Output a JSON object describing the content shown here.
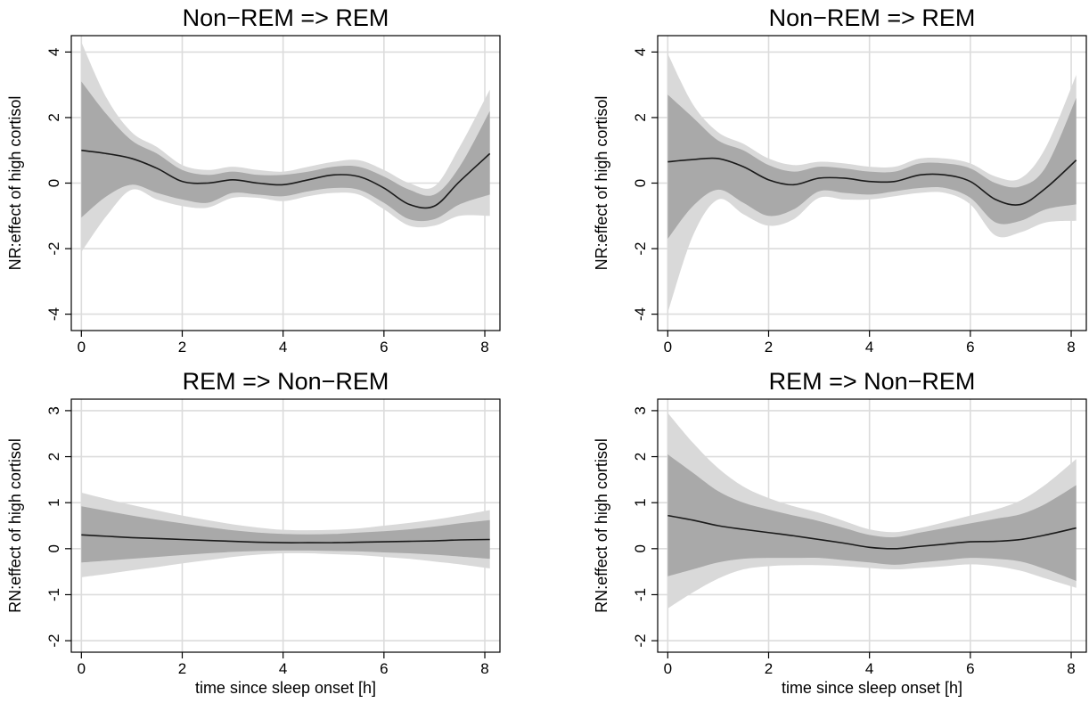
{
  "chart_data": [
    {
      "type": "line",
      "title": "Non−REM => REM",
      "xlabel": "",
      "ylabel": "NR:effect of high cortisol",
      "xlim": [
        -0.2,
        8.3
      ],
      "ylim": [
        -4.5,
        4.5
      ],
      "xticks": [
        0,
        2,
        4,
        6,
        8
      ],
      "yticks": [
        -4,
        -2,
        0,
        2,
        4
      ],
      "grid": true,
      "bands": [
        "95% interval (light grey)",
        "inner interval (dark grey)"
      ],
      "x": [
        0,
        0.5,
        1,
        1.5,
        2,
        2.5,
        3,
        3.5,
        4,
        4.5,
        5,
        5.5,
        6,
        6.5,
        7,
        7.5,
        8.1
      ],
      "estimate": [
        1.0,
        0.9,
        0.75,
        0.45,
        0.05,
        0.0,
        0.1,
        0.0,
        -0.05,
        0.1,
        0.25,
        0.2,
        -0.15,
        -0.65,
        -0.7,
        0.05,
        0.9
      ],
      "inner_lower": [
        -1.05,
        -0.4,
        -0.05,
        -0.3,
        -0.5,
        -0.6,
        -0.3,
        -0.35,
        -0.4,
        -0.25,
        -0.15,
        -0.2,
        -0.6,
        -1.1,
        -1.1,
        -0.65,
        -0.35
      ],
      "inner_upper": [
        3.1,
        2.1,
        1.3,
        0.9,
        0.4,
        0.25,
        0.35,
        0.25,
        0.25,
        0.35,
        0.5,
        0.5,
        0.2,
        -0.2,
        -0.35,
        0.5,
        2.2
      ],
      "outer_lower": [
        -2.1,
        -1.0,
        -0.2,
        -0.5,
        -0.7,
        -0.75,
        -0.45,
        -0.45,
        -0.55,
        -0.4,
        -0.3,
        -0.35,
        -0.8,
        -1.3,
        -1.3,
        -1.0,
        -1.0
      ],
      "outer_upper": [
        4.3,
        2.6,
        1.55,
        1.1,
        0.55,
        0.4,
        0.5,
        0.4,
        0.35,
        0.5,
        0.65,
        0.7,
        0.4,
        0.0,
        -0.1,
        1.1,
        2.85
      ]
    },
    {
      "type": "line",
      "title": "Non−REM => REM",
      "xlabel": "",
      "ylabel": "NR:effect of high cortisol",
      "xlim": [
        -0.2,
        8.3
      ],
      "ylim": [
        -4.5,
        4.5
      ],
      "xticks": [
        0,
        2,
        4,
        6,
        8
      ],
      "yticks": [
        -4,
        -2,
        0,
        2,
        4
      ],
      "grid": true,
      "x": [
        0,
        0.5,
        1,
        1.5,
        2,
        2.5,
        3,
        3.5,
        4,
        4.5,
        5,
        5.5,
        6,
        6.5,
        7,
        7.5,
        8.1
      ],
      "estimate": [
        0.65,
        0.72,
        0.75,
        0.5,
        0.1,
        -0.05,
        0.15,
        0.15,
        0.05,
        0.05,
        0.25,
        0.25,
        0.05,
        -0.5,
        -0.65,
        -0.15,
        0.7
      ],
      "inner_lower": [
        -1.7,
        -0.7,
        -0.2,
        -0.6,
        -1.0,
        -0.8,
        -0.25,
        -0.3,
        -0.35,
        -0.25,
        -0.15,
        -0.15,
        -0.45,
        -1.2,
        -1.15,
        -0.8,
        -0.65
      ],
      "inner_upper": [
        2.7,
        2.0,
        1.3,
        1.0,
        0.55,
        0.35,
        0.5,
        0.45,
        0.35,
        0.35,
        0.6,
        0.6,
        0.45,
        0.0,
        -0.1,
        0.5,
        2.6
      ],
      "outer_lower": [
        -3.95,
        -1.6,
        -0.5,
        -0.95,
        -1.3,
        -1.1,
        -0.45,
        -0.5,
        -0.5,
        -0.4,
        -0.3,
        -0.3,
        -0.65,
        -1.6,
        -1.5,
        -1.2,
        -1.15
      ],
      "outer_upper": [
        3.95,
        2.4,
        1.55,
        1.2,
        0.75,
        0.55,
        0.65,
        0.6,
        0.5,
        0.5,
        0.75,
        0.75,
        0.6,
        0.2,
        0.15,
        1.1,
        3.3
      ]
    },
    {
      "type": "line",
      "title": "REM => Non−REM",
      "xlabel": "time since sleep onset [h]",
      "ylabel": "RN:effect of high cortisol",
      "xlim": [
        -0.2,
        8.3
      ],
      "ylim": [
        -2.25,
        3.25
      ],
      "xticks": [
        0,
        2,
        4,
        6,
        8
      ],
      "yticks": [
        -2,
        -1,
        0,
        1,
        2,
        3
      ],
      "grid": true,
      "x": [
        0,
        0.5,
        1,
        1.5,
        2,
        2.5,
        3,
        3.5,
        4,
        4.5,
        5,
        5.5,
        6,
        6.5,
        7,
        7.5,
        8.1
      ],
      "estimate": [
        0.3,
        0.27,
        0.24,
        0.22,
        0.2,
        0.18,
        0.16,
        0.14,
        0.13,
        0.13,
        0.13,
        0.14,
        0.15,
        0.16,
        0.17,
        0.19,
        0.2
      ],
      "inner_lower": [
        -0.3,
        -0.26,
        -0.22,
        -0.18,
        -0.14,
        -0.1,
        -0.07,
        -0.05,
        -0.04,
        -0.04,
        -0.05,
        -0.06,
        -0.08,
        -0.1,
        -0.13,
        -0.17,
        -0.22
      ],
      "inner_upper": [
        0.92,
        0.82,
        0.72,
        0.63,
        0.55,
        0.47,
        0.4,
        0.35,
        0.32,
        0.31,
        0.32,
        0.35,
        0.38,
        0.42,
        0.48,
        0.55,
        0.62
      ],
      "outer_lower": [
        -0.62,
        -0.55,
        -0.47,
        -0.4,
        -0.32,
        -0.25,
        -0.18,
        -0.13,
        -0.1,
        -0.1,
        -0.12,
        -0.14,
        -0.18,
        -0.22,
        -0.28,
        -0.34,
        -0.43
      ],
      "outer_upper": [
        1.22,
        1.08,
        0.95,
        0.83,
        0.72,
        0.62,
        0.53,
        0.46,
        0.41,
        0.4,
        0.41,
        0.44,
        0.5,
        0.56,
        0.63,
        0.72,
        0.84
      ]
    },
    {
      "type": "line",
      "title": "REM => Non−REM",
      "xlabel": "time since sleep onset [h]",
      "ylabel": "RN:effect of high cortisol",
      "xlim": [
        -0.2,
        8.3
      ],
      "ylim": [
        -2.25,
        3.25
      ],
      "xticks": [
        0,
        2,
        4,
        6,
        8
      ],
      "yticks": [
        -2,
        -1,
        0,
        1,
        2,
        3
      ],
      "grid": true,
      "x": [
        0,
        0.5,
        1,
        1.5,
        2,
        2.5,
        3,
        3.5,
        4,
        4.5,
        5,
        5.5,
        6,
        6.5,
        7,
        7.5,
        8.1
      ],
      "estimate": [
        0.72,
        0.62,
        0.5,
        0.42,
        0.35,
        0.28,
        0.2,
        0.12,
        0.03,
        0.0,
        0.05,
        0.1,
        0.15,
        0.16,
        0.2,
        0.3,
        0.45
      ],
      "inner_lower": [
        -0.6,
        -0.45,
        -0.3,
        -0.22,
        -0.2,
        -0.2,
        -0.2,
        -0.25,
        -0.3,
        -0.35,
        -0.3,
        -0.25,
        -0.2,
        -0.22,
        -0.28,
        -0.45,
        -0.7
      ],
      "inner_upper": [
        2.05,
        1.65,
        1.25,
        1.0,
        0.85,
        0.72,
        0.6,
        0.45,
        0.3,
        0.25,
        0.35,
        0.45,
        0.55,
        0.65,
        0.75,
        0.98,
        1.38
      ],
      "outer_lower": [
        -1.3,
        -0.95,
        -0.65,
        -0.45,
        -0.38,
        -0.36,
        -0.36,
        -0.38,
        -0.42,
        -0.45,
        -0.42,
        -0.38,
        -0.34,
        -0.38,
        -0.48,
        -0.65,
        -0.85
      ],
      "outer_upper": [
        2.95,
        2.3,
        1.75,
        1.35,
        1.1,
        0.92,
        0.78,
        0.6,
        0.42,
        0.36,
        0.45,
        0.58,
        0.72,
        0.85,
        1.05,
        1.4,
        1.95
      ]
    }
  ]
}
